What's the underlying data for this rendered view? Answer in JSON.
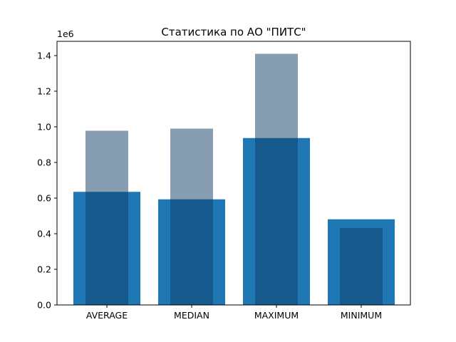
{
  "chart_data": {
    "type": "bar",
    "title": "Статистика по АО \"ПИТС\"",
    "xlabel": "",
    "ylabel": "",
    "scale_label": "1e6",
    "categories": [
      "AVERAGE",
      "MEDIAN",
      "MAXIMUM",
      "MINIMUM"
    ],
    "series": [
      {
        "color": "#1f77b4",
        "values": [
          635000,
          593000,
          937000,
          481000
        ]
      },
      {
        "color": "#0d3b66",
        "alpha": 0.5,
        "values": [
          978000,
          990000,
          1410000,
          432000
        ]
      }
    ],
    "yticks": [
      {
        "value": 0,
        "label": "0.0"
      },
      {
        "value": 200000,
        "label": "0.2"
      },
      {
        "value": 400000,
        "label": "0.4"
      },
      {
        "value": 600000,
        "label": "0.6"
      },
      {
        "value": 800000,
        "label": "0.8"
      },
      {
        "value": 1000000,
        "label": "1.0"
      },
      {
        "value": 1200000,
        "label": "1.2"
      },
      {
        "value": 1400000,
        "label": "1.4"
      }
    ],
    "ylim": [
      0,
      1480000
    ],
    "grid": false,
    "legend": "none"
  }
}
